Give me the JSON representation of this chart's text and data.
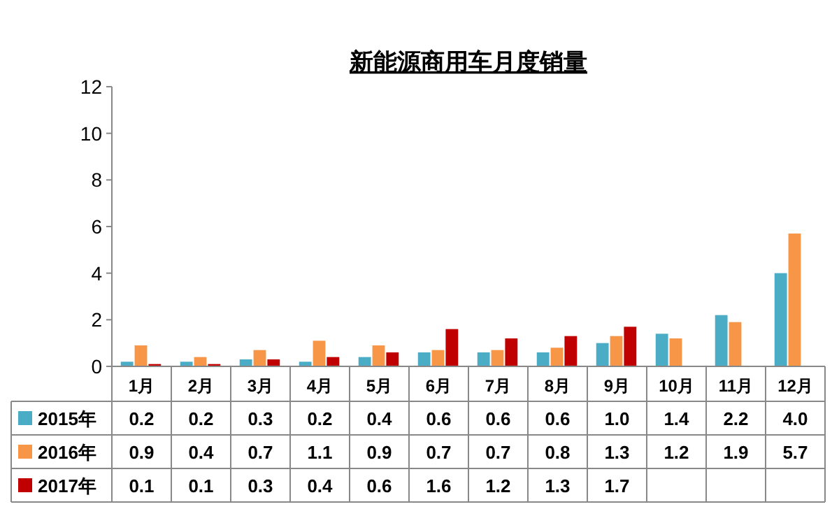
{
  "chart_data": {
    "type": "bar",
    "title": "新能源商用车月度销量",
    "categories": [
      "1月",
      "2月",
      "3月",
      "4月",
      "5月",
      "6月",
      "7月",
      "8月",
      "9月",
      "10月",
      "11月",
      "12月"
    ],
    "series": [
      {
        "name": "2015年",
        "color": "#4bacc6",
        "values": [
          0.2,
          0.2,
          0.3,
          0.2,
          0.4,
          0.6,
          0.6,
          0.6,
          1.0,
          1.4,
          2.2,
          4.0
        ],
        "value_labels": [
          "0.2",
          "0.2",
          "0.3",
          "0.2",
          "0.4",
          "0.6",
          "0.6",
          "0.6",
          "1.0",
          "1.4",
          "2.2",
          "4.0"
        ]
      },
      {
        "name": "2016年",
        "color": "#f79646",
        "values": [
          0.9,
          0.4,
          0.7,
          1.1,
          0.9,
          0.7,
          0.7,
          0.8,
          1.3,
          1.2,
          1.9,
          5.7
        ],
        "value_labels": [
          "0.9",
          "0.4",
          "0.7",
          "1.1",
          "0.9",
          "0.7",
          "0.7",
          "0.8",
          "1.3",
          "1.2",
          "1.9",
          "5.7"
        ]
      },
      {
        "name": "2017年",
        "color": "#c00000",
        "values": [
          0.1,
          0.1,
          0.3,
          0.4,
          0.6,
          1.6,
          1.2,
          1.3,
          1.7,
          null,
          null,
          null
        ],
        "value_labels": [
          "0.1",
          "0.1",
          "0.3",
          "0.4",
          "0.6",
          "1.6",
          "1.2",
          "1.3",
          "1.7",
          null,
          null,
          null
        ]
      }
    ],
    "ylim": [
      0,
      12
    ],
    "yticks": [
      0,
      2,
      4,
      6,
      8,
      10,
      12
    ],
    "legend": "bottom"
  }
}
